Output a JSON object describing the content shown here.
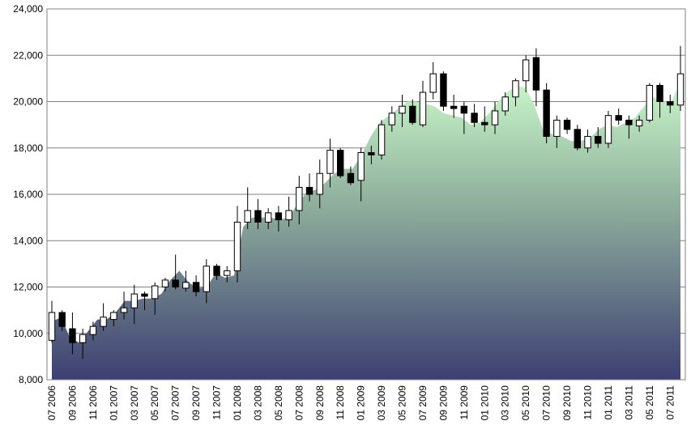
{
  "chart_data": {
    "type": "candlestick-area",
    "title": "",
    "xlabel": "",
    "ylabel": "",
    "ylim": [
      8000,
      24000
    ],
    "yticks": [
      8000,
      10000,
      12000,
      14000,
      16000,
      18000,
      20000,
      22000,
      24000
    ],
    "ytick_labels": [
      "8,000",
      "10,000",
      "12,000",
      "14,000",
      "16,000",
      "18,000",
      "20,000",
      "22,000",
      "24,000"
    ],
    "xtick_labels": [
      "07 2006",
      "09 2006",
      "11 2006",
      "01 2007",
      "03 2007",
      "05 2007",
      "07 2007",
      "09 2007",
      "11 2007",
      "01 2008",
      "03 2008",
      "05 2008",
      "07 2008",
      "09 2008",
      "11 2008",
      "01 2009",
      "03 2009",
      "05 2009",
      "07 2009",
      "09 2009",
      "11 2009",
      "01 2010",
      "03 2010",
      "05 2010",
      "07 2010",
      "09 2010",
      "11 2010",
      "01 2011",
      "03 2011",
      "05 2011",
      "07 2011"
    ],
    "grid": true,
    "legend": "none",
    "colors": {
      "area_top": "#c8f7c8",
      "area_mid": "#8aa89a",
      "area_bottom": "#3d3f72",
      "bull_body": "#ffffff",
      "bear_body": "#000000",
      "wick": "#000000",
      "grid": "#808080"
    },
    "candles": [
      {
        "o": 9700,
        "h": 11400,
        "l": 9600,
        "c": 10900
      },
      {
        "o": 10900,
        "h": 11000,
        "l": 10100,
        "c": 10300
      },
      {
        "o": 10200,
        "h": 10900,
        "l": 9100,
        "c": 9600
      },
      {
        "o": 9600,
        "h": 10200,
        "l": 8900,
        "c": 9950
      },
      {
        "o": 9950,
        "h": 10500,
        "l": 9700,
        "c": 10300
      },
      {
        "o": 10300,
        "h": 11300,
        "l": 10100,
        "c": 10700
      },
      {
        "o": 10600,
        "h": 11000,
        "l": 10300,
        "c": 10900
      },
      {
        "o": 10900,
        "h": 11800,
        "l": 10600,
        "c": 11100
      },
      {
        "o": 11100,
        "h": 12100,
        "l": 10400,
        "c": 11700
      },
      {
        "o": 11700,
        "h": 11800,
        "l": 11000,
        "c": 11600
      },
      {
        "o": 11500,
        "h": 12200,
        "l": 10800,
        "c": 12050
      },
      {
        "o": 12000,
        "h": 12400,
        "l": 11800,
        "c": 12300
      },
      {
        "o": 12300,
        "h": 13400,
        "l": 11900,
        "c": 12000
      },
      {
        "o": 11950,
        "h": 12700,
        "l": 11800,
        "c": 12200
      },
      {
        "o": 12200,
        "h": 12500,
        "l": 11600,
        "c": 11800
      },
      {
        "o": 11800,
        "h": 13200,
        "l": 11300,
        "c": 12900
      },
      {
        "o": 12900,
        "h": 13000,
        "l": 12300,
        "c": 12500
      },
      {
        "o": 12500,
        "h": 12900,
        "l": 12200,
        "c": 12700
      },
      {
        "o": 12700,
        "h": 15500,
        "l": 12200,
        "c": 14800
      },
      {
        "o": 14800,
        "h": 16300,
        "l": 14500,
        "c": 15300
      },
      {
        "o": 15300,
        "h": 15800,
        "l": 14500,
        "c": 14800
      },
      {
        "o": 14800,
        "h": 15400,
        "l": 14500,
        "c": 15200
      },
      {
        "o": 15200,
        "h": 15500,
        "l": 14400,
        "c": 14900
      },
      {
        "o": 14900,
        "h": 15900,
        "l": 14600,
        "c": 15300
      },
      {
        "o": 15300,
        "h": 16800,
        "l": 14700,
        "c": 16300
      },
      {
        "o": 16300,
        "h": 16900,
        "l": 15700,
        "c": 16000
      },
      {
        "o": 16000,
        "h": 17500,
        "l": 15400,
        "c": 16900
      },
      {
        "o": 16900,
        "h": 18400,
        "l": 16300,
        "c": 17900
      },
      {
        "o": 17900,
        "h": 18000,
        "l": 16700,
        "c": 16800
      },
      {
        "o": 16900,
        "h": 17200,
        "l": 16400,
        "c": 16500
      },
      {
        "o": 16600,
        "h": 18000,
        "l": 15700,
        "c": 17800
      },
      {
        "o": 17800,
        "h": 18100,
        "l": 17300,
        "c": 17700
      },
      {
        "o": 17700,
        "h": 19200,
        "l": 17500,
        "c": 19000
      },
      {
        "o": 19000,
        "h": 19800,
        "l": 18700,
        "c": 19500
      },
      {
        "o": 19500,
        "h": 20300,
        "l": 18900,
        "c": 19800
      },
      {
        "o": 19800,
        "h": 20100,
        "l": 19000,
        "c": 19100
      },
      {
        "o": 19000,
        "h": 20900,
        "l": 18900,
        "c": 20400
      },
      {
        "o": 20400,
        "h": 21700,
        "l": 20100,
        "c": 21200
      },
      {
        "o": 21200,
        "h": 21300,
        "l": 19600,
        "c": 19800
      },
      {
        "o": 19800,
        "h": 20300,
        "l": 19300,
        "c": 19700
      },
      {
        "o": 19800,
        "h": 20000,
        "l": 18600,
        "c": 19500
      },
      {
        "o": 19500,
        "h": 19900,
        "l": 18900,
        "c": 19100
      },
      {
        "o": 19100,
        "h": 19800,
        "l": 18700,
        "c": 19000
      },
      {
        "o": 19000,
        "h": 20000,
        "l": 18600,
        "c": 19600
      },
      {
        "o": 19600,
        "h": 20400,
        "l": 19400,
        "c": 20200
      },
      {
        "o": 20200,
        "h": 21000,
        "l": 19800,
        "c": 20900
      },
      {
        "o": 20900,
        "h": 22000,
        "l": 20400,
        "c": 21800
      },
      {
        "o": 21900,
        "h": 22300,
        "l": 19800,
        "c": 20500
      },
      {
        "o": 20500,
        "h": 20800,
        "l": 18200,
        "c": 18500
      },
      {
        "o": 18500,
        "h": 19400,
        "l": 18000,
        "c": 19200
      },
      {
        "o": 19200,
        "h": 19300,
        "l": 18600,
        "c": 18800
      },
      {
        "o": 18800,
        "h": 19000,
        "l": 17900,
        "c": 18000
      },
      {
        "o": 18000,
        "h": 18800,
        "l": 17800,
        "c": 18500
      },
      {
        "o": 18500,
        "h": 18900,
        "l": 18000,
        "c": 18200
      },
      {
        "o": 18200,
        "h": 19600,
        "l": 18000,
        "c": 19400
      },
      {
        "o": 19400,
        "h": 19700,
        "l": 19000,
        "c": 19200
      },
      {
        "o": 19200,
        "h": 19400,
        "l": 18400,
        "c": 19000
      },
      {
        "o": 18950,
        "h": 19400,
        "l": 18700,
        "c": 19200
      },
      {
        "o": 19200,
        "h": 20800,
        "l": 19100,
        "c": 20700
      },
      {
        "o": 20700,
        "h": 20800,
        "l": 19300,
        "c": 20000
      },
      {
        "o": 20000,
        "h": 20300,
        "l": 19500,
        "c": 19850
      },
      {
        "o": 19850,
        "h": 22400,
        "l": 19600,
        "c": 21200
      }
    ],
    "area_values": [
      10500,
      10700,
      9800,
      9600,
      10100,
      10600,
      10600,
      10900,
      11400,
      11400,
      11500,
      11500,
      11700,
      12300,
      12700,
      12200,
      11950,
      12000,
      12600,
      12400,
      12500,
      14600,
      15000,
      15000,
      15000,
      14900,
      15000,
      15600,
      16100,
      16200,
      16500,
      16900,
      17100,
      17100,
      17700,
      18500,
      19100,
      19400,
      19700,
      20000,
      20000,
      19900,
      19800,
      19500,
      19400,
      19300,
      19000,
      19100,
      19500,
      20000,
      20400,
      20700,
      20600,
      19800,
      18700,
      18600,
      18500,
      18300,
      18300,
      18400,
      18800,
      19000,
      18900,
      19100,
      19300,
      19800,
      20200,
      20000,
      20000,
      20900
    ]
  }
}
